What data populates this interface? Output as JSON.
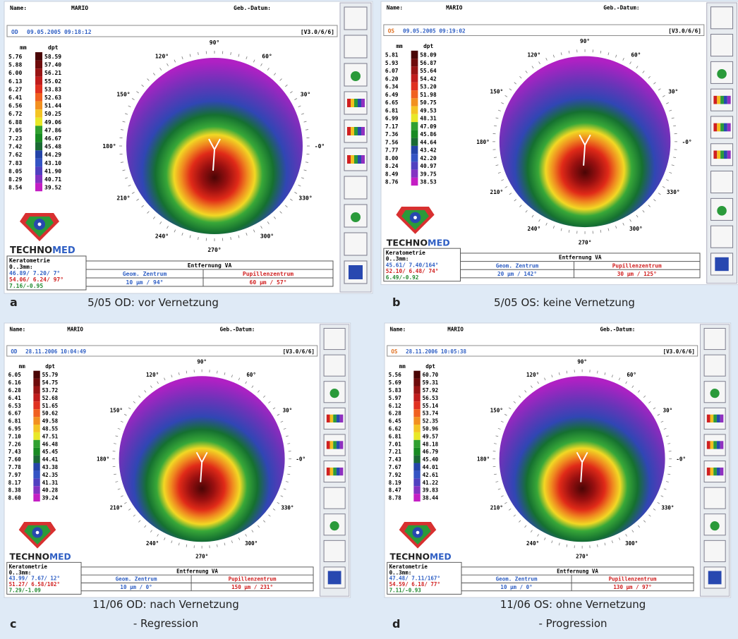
{
  "angles": [
    "90°",
    "60°",
    "30°",
    "-0°",
    "330°",
    "300°",
    "270°",
    "240°",
    "210°",
    "180°",
    "150°",
    "120°"
  ],
  "labels": {
    "name": "Name:",
    "dob": "Geb.-Datum:",
    "version": "[V3.0/6/6]",
    "mm": "mm",
    "dpt": "dpt",
    "brand_a": "TECHNO",
    "brand_b": "MED",
    "kerato": "Keratometrie",
    "kerato_range": "0..3mm:",
    "distance": "Entfernung VA",
    "geom": "Geom. Zentrum",
    "pupil": "Pupillenzentrum"
  },
  "panels": [
    {
      "letter": "a",
      "caption": [
        "5/05 OD: vor Vernetzung"
      ],
      "name": "MARIO",
      "eye": "OD",
      "eye_color": "#2f5fc4",
      "datetime": "09.05.2005 09:18:12",
      "mm": [
        "5.76",
        "5.88",
        "6.00",
        "6.13",
        "6.27",
        "6.41",
        "6.56",
        "6.72",
        "6.88",
        "7.05",
        "7.23",
        "7.42",
        "7.62",
        "7.83",
        "8.05",
        "8.29",
        "8.54"
      ],
      "dpt": [
        "58.59",
        "57.40",
        "56.21",
        "55.02",
        "53.83",
        "52.63",
        "51.44",
        "50.25",
        "49.06",
        "47.86",
        "46.67",
        "45.48",
        "44.29",
        "43.10",
        "41.90",
        "40.71",
        "39.52"
      ],
      "kerato": [
        "46.89/ 7.20/ 7°",
        "54.06/ 6.24/ 97°",
        "7.16/-0.95"
      ],
      "geom": "10 µm / 94°",
      "pupil": "60 µm / 57°"
    },
    {
      "letter": "b",
      "caption": [
        "5/05 OS: keine Vernetzung"
      ],
      "name": "MARIO",
      "eye": "OS",
      "eye_color": "#e07020",
      "datetime": "09.05.2005 09:19:02",
      "mm": [
        "5.81",
        "5.93",
        "6.07",
        "6.20",
        "6.34",
        "6.49",
        "6.65",
        "6.81",
        "6.99",
        "7.17",
        "7.36",
        "7.56",
        "7.77",
        "8.00",
        "8.24",
        "8.49",
        "8.76"
      ],
      "dpt": [
        "58.09",
        "56.87",
        "55.64",
        "54.42",
        "53.20",
        "51.98",
        "50.75",
        "49.53",
        "48.31",
        "47.09",
        "45.86",
        "44.64",
        "43.42",
        "42.20",
        "40.97",
        "39.75",
        "38.53"
      ],
      "kerato": [
        "45.61/ 7.40/164°",
        "52.10/ 6.48/ 74°",
        "6.49/-0.92"
      ],
      "geom": "20 µm / 142°",
      "pupil": "30 µm / 125°"
    },
    {
      "letter": "c",
      "caption": [
        "11/06 OD: nach Vernetzung",
        "- Regression"
      ],
      "name": "MARIO",
      "eye": "OD",
      "eye_color": "#2f5fc4",
      "datetime": "28.11.2006 10:04:49",
      "mm": [
        "6.05",
        "6.16",
        "6.28",
        "6.41",
        "6.53",
        "6.67",
        "6.81",
        "6.95",
        "7.10",
        "7.26",
        "7.43",
        "7.60",
        "7.78",
        "7.97",
        "8.17",
        "8.38",
        "8.60"
      ],
      "dpt": [
        "55.79",
        "54.75",
        "53.72",
        "52.68",
        "51.65",
        "50.62",
        "49.58",
        "48.55",
        "47.51",
        "46.48",
        "45.45",
        "44.41",
        "43.38",
        "42.35",
        "41.31",
        "40.28",
        "39.24"
      ],
      "kerato": [
        "43.99/ 7.67/ 12°",
        "51.27/ 6.58/102°",
        "7.29/-1.09"
      ],
      "geom": "10 µm / 0°",
      "pupil": "150 µm / 231°"
    },
    {
      "letter": "d",
      "caption": [
        "11/06 OS: ohne Vernetzung",
        "- Progression"
      ],
      "name": "MARIO",
      "eye": "OS",
      "eye_color": "#e07020",
      "datetime": "28.11.2006 10:05:38",
      "mm": [
        "5.56",
        "5.69",
        "5.83",
        "5.97",
        "6.12",
        "6.28",
        "6.45",
        "6.62",
        "6.81",
        "7.01",
        "7.21",
        "7.43",
        "7.67",
        "7.92",
        "8.19",
        "8.47",
        "8.78"
      ],
      "dpt": [
        "60.70",
        "59.31",
        "57.92",
        "56.53",
        "55.14",
        "53.74",
        "52.35",
        "50.96",
        "49.57",
        "48.18",
        "46.79",
        "45.40",
        "44.01",
        "42.61",
        "41.22",
        "39.83",
        "38.44"
      ],
      "kerato": [
        "47.48/ 7.11/167°",
        "54.59/ 6.18/ 77°",
        "7.11/-0.93"
      ],
      "geom": "10 µm / 0°",
      "pupil": "130 µm / 97°"
    }
  ]
}
